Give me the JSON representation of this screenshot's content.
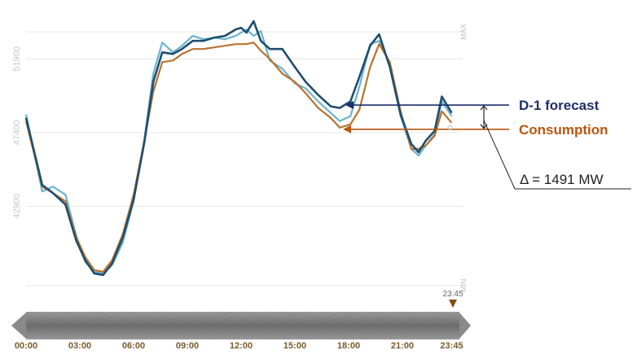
{
  "colors": {
    "forecast": "#1f4e6e",
    "consumption": "#b8732e",
    "realized": "#6bb4d0",
    "annotation_forecast": "#1f2f6b",
    "annotation_consumption": "#b8560f",
    "timeline_marker": "#8a4a10"
  },
  "chart_data": {
    "type": "line",
    "yticks": [
      42900,
      47400,
      51900
    ],
    "ymin_label": "MIN",
    "ymax_label": "MAX",
    "ylim": [
      37000,
      54600
    ],
    "xticks": [
      "00:00",
      "03:00",
      "06:00",
      "09:00",
      "12:00",
      "15:00",
      "18:00",
      "21:00",
      "23:45"
    ],
    "xlim": [
      0,
      24
    ],
    "grid": true,
    "current_marker": "23:45",
    "series": [
      {
        "name": "D-1 forecast",
        "color_key": "forecast",
        "points": [
          [
            0,
            48300
          ],
          [
            0.9,
            44200
          ],
          [
            1.5,
            43700
          ],
          [
            2.2,
            43000
          ],
          [
            2.8,
            40800
          ],
          [
            3.3,
            39600
          ],
          [
            3.8,
            38800
          ],
          [
            4.3,
            38700
          ],
          [
            4.8,
            39400
          ],
          [
            5.4,
            41000
          ],
          [
            6.0,
            43300
          ],
          [
            6.6,
            46800
          ],
          [
            7.1,
            50500
          ],
          [
            7.6,
            52300
          ],
          [
            8.2,
            52200
          ],
          [
            8.7,
            52500
          ],
          [
            9.3,
            53000
          ],
          [
            9.9,
            53000
          ],
          [
            10.5,
            53200
          ],
          [
            11.1,
            53300
          ],
          [
            11.7,
            53700
          ],
          [
            12.0,
            53800
          ],
          [
            12.3,
            53500
          ],
          [
            12.7,
            54200
          ],
          [
            13.1,
            53000
          ],
          [
            13.6,
            52500
          ],
          [
            14.3,
            52500
          ],
          [
            15.0,
            51400
          ],
          [
            15.6,
            50500
          ],
          [
            16.3,
            49700
          ],
          [
            17.0,
            49000
          ],
          [
            17.5,
            48900
          ],
          [
            18.1,
            49300
          ],
          [
            18.6,
            50800
          ],
          [
            19.2,
            52700
          ],
          [
            19.7,
            53400
          ],
          [
            20.3,
            51400
          ],
          [
            20.9,
            48500
          ],
          [
            21.5,
            46700
          ],
          [
            21.9,
            46200
          ],
          [
            22.3,
            46900
          ],
          [
            22.8,
            47500
          ],
          [
            23.2,
            49600
          ],
          [
            23.75,
            48600
          ]
        ]
      },
      {
        "name": "Consumption",
        "color_key": "consumption",
        "points": [
          [
            0,
            48100
          ],
          [
            0.9,
            44100
          ],
          [
            1.5,
            43700
          ],
          [
            2.2,
            43200
          ],
          [
            2.8,
            41000
          ],
          [
            3.3,
            39800
          ],
          [
            3.8,
            39000
          ],
          [
            4.3,
            38900
          ],
          [
            4.8,
            39600
          ],
          [
            5.4,
            41200
          ],
          [
            6.0,
            43600
          ],
          [
            6.6,
            46900
          ],
          [
            7.1,
            49900
          ],
          [
            7.6,
            51700
          ],
          [
            8.2,
            51800
          ],
          [
            8.7,
            52200
          ],
          [
            9.3,
            52500
          ],
          [
            9.9,
            52500
          ],
          [
            10.5,
            52600
          ],
          [
            11.1,
            52700
          ],
          [
            11.7,
            52800
          ],
          [
            12.3,
            52800
          ],
          [
            12.7,
            52900
          ],
          [
            13.1,
            52400
          ],
          [
            13.6,
            51900
          ],
          [
            14.3,
            51000
          ],
          [
            15.0,
            50500
          ],
          [
            15.6,
            49800
          ],
          [
            16.3,
            48900
          ],
          [
            17.0,
            48300
          ],
          [
            17.5,
            47700
          ],
          [
            18.1,
            47900
          ],
          [
            18.6,
            48800
          ],
          [
            19.2,
            51400
          ],
          [
            19.7,
            52800
          ],
          [
            20.3,
            51700
          ],
          [
            20.9,
            48700
          ],
          [
            21.5,
            46400
          ],
          [
            21.9,
            46400
          ],
          [
            22.3,
            46600
          ],
          [
            22.8,
            47200
          ],
          [
            23.2,
            48700
          ],
          [
            23.75,
            48000
          ]
        ]
      },
      {
        "name": "",
        "color_key": "realized",
        "points": [
          [
            0,
            48500
          ],
          [
            0.9,
            43800
          ],
          [
            1.5,
            44100
          ],
          [
            2.2,
            43600
          ],
          [
            2.8,
            41100
          ],
          [
            3.3,
            39500
          ],
          [
            3.8,
            38900
          ],
          [
            4.3,
            38800
          ],
          [
            4.8,
            39300
          ],
          [
            5.4,
            40700
          ],
          [
            6.0,
            43200
          ],
          [
            6.6,
            47000
          ],
          [
            7.1,
            51000
          ],
          [
            7.6,
            52900
          ],
          [
            8.2,
            52300
          ],
          [
            8.7,
            52700
          ],
          [
            9.3,
            53300
          ],
          [
            9.9,
            53100
          ],
          [
            10.5,
            53200
          ],
          [
            11.1,
            53100
          ],
          [
            11.7,
            53300
          ],
          [
            12.3,
            53700
          ],
          [
            12.7,
            53300
          ],
          [
            13.1,
            53600
          ],
          [
            13.6,
            51800
          ],
          [
            14.3,
            51300
          ],
          [
            15.0,
            50400
          ],
          [
            15.6,
            50100
          ],
          [
            16.3,
            49300
          ],
          [
            17.0,
            48600
          ],
          [
            17.5,
            48100
          ],
          [
            18.1,
            48400
          ],
          [
            18.6,
            50200
          ],
          [
            19.2,
            52800
          ],
          [
            19.7,
            53000
          ],
          [
            20.3,
            51600
          ],
          [
            20.9,
            48400
          ],
          [
            21.5,
            46400
          ],
          [
            21.9,
            46000
          ],
          [
            22.3,
            46600
          ],
          [
            22.8,
            47300
          ],
          [
            23.2,
            49300
          ],
          [
            23.75,
            48400
          ]
        ]
      }
    ]
  },
  "annotations": {
    "forecast_label": "D-1 forecast",
    "consumption_label": "Consumption",
    "delta_label": "Δ = 1491 MW",
    "forecast_value": 49080,
    "consumption_value": 47600
  }
}
